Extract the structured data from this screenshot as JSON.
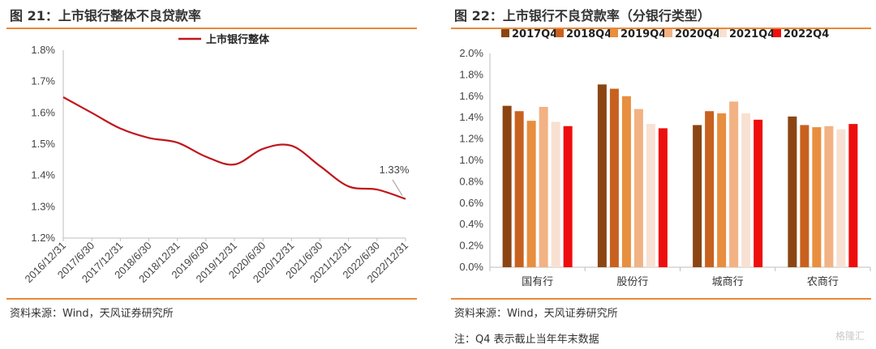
{
  "left_panel": {
    "title": "图 21：上市银行整体不良贷款率",
    "source": "资料来源：Wind，天风证券研究所",
    "annotation": "1.33%"
  },
  "right_panel": {
    "title": "图 22：上市银行不良贷款率（分银行类型）",
    "source": "资料来源：Wind，天风证券研究所",
    "note": "注：Q4 表示截止当年年末数据"
  },
  "watermark": "格隆汇",
  "colors": {
    "accent": "#e8893a",
    "line": "#c0161c",
    "grid": "#d9d9d9"
  },
  "chart_data": [
    {
      "type": "line",
      "title": "",
      "xlabel": "",
      "ylabel": "",
      "x": [
        "2016/12/31",
        "2017/6/30",
        "2017/12/31",
        "2018/6/30",
        "2018/12/31",
        "2019/6/30",
        "2019/12/31",
        "2020/6/30",
        "2020/12/31",
        "2021/6/30",
        "2021/12/31",
        "2022/6/30",
        "2022/12/31"
      ],
      "series": [
        {
          "name": "上市银行整体",
          "color": "#c0161c",
          "values": [
            1.65,
            1.6,
            1.55,
            1.52,
            1.505,
            1.46,
            1.435,
            1.485,
            1.495,
            1.43,
            1.365,
            1.355,
            1.325
          ]
        }
      ],
      "ylim": [
        1.2,
        1.8
      ],
      "yticks": [
        "1.2%",
        "1.3%",
        "1.4%",
        "1.5%",
        "1.6%",
        "1.7%",
        "1.8%"
      ],
      "grid": false,
      "legend": "top"
    },
    {
      "type": "bar",
      "title": "",
      "xlabel": "",
      "ylabel": "",
      "categories": [
        "国有行",
        "股份行",
        "城商行",
        "农商行"
      ],
      "series": [
        {
          "name": "2017Q4",
          "color": "#8b4513",
          "values": [
            1.51,
            1.71,
            1.33,
            1.41
          ]
        },
        {
          "name": "2018Q4",
          "color": "#c8611f",
          "values": [
            1.46,
            1.67,
            1.46,
            1.33
          ]
        },
        {
          "name": "2019Q4",
          "color": "#e88e3f",
          "values": [
            1.37,
            1.6,
            1.44,
            1.31
          ]
        },
        {
          "name": "2020Q4",
          "color": "#f2b284",
          "values": [
            1.5,
            1.48,
            1.55,
            1.32
          ]
        },
        {
          "name": "2021Q4",
          "color": "#f8e1d2",
          "values": [
            1.36,
            1.34,
            1.44,
            1.29
          ]
        },
        {
          "name": "2022Q4",
          "color": "#ee0e0e",
          "values": [
            1.32,
            1.3,
            1.38,
            1.34
          ]
        }
      ],
      "ylim": [
        0.0,
        2.0
      ],
      "yticks": [
        "0.0%",
        "0.2%",
        "0.4%",
        "0.6%",
        "0.8%",
        "1.0%",
        "1.2%",
        "1.4%",
        "1.6%",
        "1.8%",
        "2.0%"
      ],
      "grid": false,
      "legend": "top"
    }
  ]
}
